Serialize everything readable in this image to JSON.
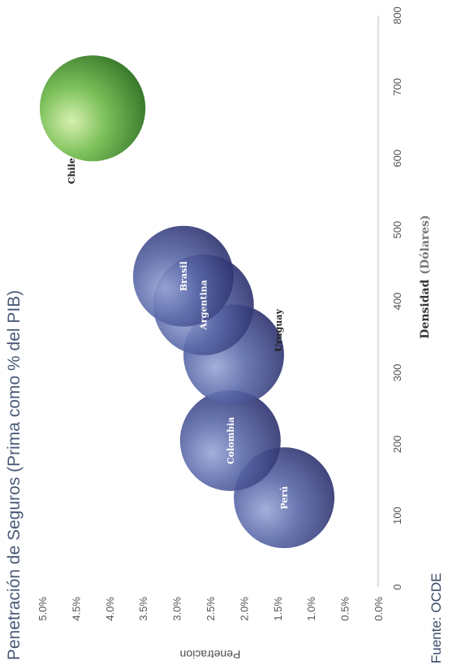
{
  "chart_data": {
    "type": "bubble",
    "title": "Penetración de Seguros (Prima como % del PIB)",
    "xlabel": {
      "part1": "Densidad",
      "part2": "(Dólares)"
    },
    "ylabel": "Penetracion",
    "xlim": [
      0,
      800
    ],
    "ylim": [
      0,
      5
    ],
    "xticks": [
      "0",
      "100",
      "200",
      "300",
      "400",
      "500",
      "600",
      "700",
      "800"
    ],
    "yticks": [
      "0.0%",
      "0.5%",
      "1.0%",
      "1.5%",
      "2.0%",
      "2.5%",
      "3.0%",
      "3.5%",
      "4.0%",
      "4.5%",
      "5.0%"
    ],
    "points": [
      {
        "label": "Perú",
        "x": 125,
        "y": 1.4,
        "size": 1.0,
        "color": "#5a6aa6",
        "label_color": "#ffffff"
      },
      {
        "label": "Colombia",
        "x": 205,
        "y": 2.2,
        "size": 1.0,
        "color": "#5a6aa6",
        "label_color": "#ffffff"
      },
      {
        "label": "Uruguay",
        "x": 325,
        "y": 2.15,
        "size": 1.0,
        "color": "#5a6aa6",
        "label_color": "#222222"
      },
      {
        "label": "Argentina",
        "x": 395,
        "y": 2.6,
        "size": 1.0,
        "color": "#5a6aa6",
        "label_color": "#ffffff"
      },
      {
        "label": "Brasil",
        "x": 435,
        "y": 2.9,
        "size": 1.0,
        "color": "#5a6aa6",
        "label_color": "#ffffff"
      },
      {
        "label": "Chile",
        "x": 670,
        "y": 4.25,
        "size": 1.05,
        "color": "#7cc05a",
        "label_color": "#222222"
      }
    ]
  },
  "footer": {
    "source": "Fuente: OCDE"
  }
}
